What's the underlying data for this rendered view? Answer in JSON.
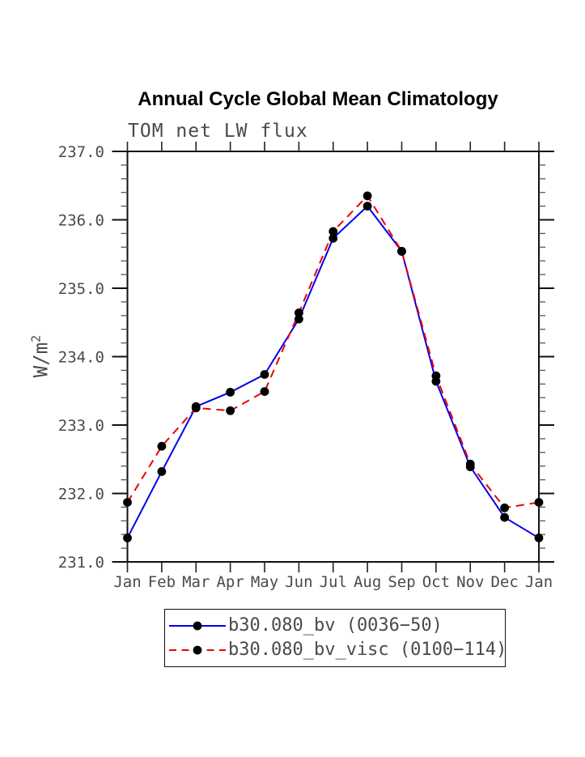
{
  "chart_data": {
    "type": "line",
    "title": "Annual Cycle Global Mean Climatology",
    "subtitle": "TOM net LW flux",
    "ylabel": "W/m2",
    "ylabel_display": {
      "base": "W/m",
      "sup": "2"
    },
    "xlabel": "",
    "categories": [
      "Jan",
      "Feb",
      "Mar",
      "Apr",
      "May",
      "Jun",
      "Jul",
      "Aug",
      "Sep",
      "Oct",
      "Nov",
      "Dec",
      "Jan"
    ],
    "ylim": [
      231.0,
      237.0
    ],
    "y_ticks": [
      {
        "value": 231.0,
        "label": "231.0"
      },
      {
        "value": 232.0,
        "label": "232.0"
      },
      {
        "value": 233.0,
        "label": "233.0"
      },
      {
        "value": 234.0,
        "label": "234.0"
      },
      {
        "value": 235.0,
        "label": "235.0"
      },
      {
        "value": 236.0,
        "label": "236.0"
      },
      {
        "value": 237.0,
        "label": "237.0"
      }
    ],
    "y_minor_interval": 0.2,
    "grid": false,
    "legend_position": "bottom-center",
    "marker": "filled-circle",
    "marker_color": "#000000",
    "series": [
      {
        "name": "b30.080_bv (0036−50)",
        "color": "#0000ee",
        "style": "solid",
        "values": [
          231.35,
          232.32,
          233.27,
          233.48,
          233.74,
          234.55,
          235.73,
          236.2,
          235.54,
          233.64,
          232.39,
          231.65,
          231.35
        ]
      },
      {
        "name": "b30.080_bv_visc (0100−114)",
        "color": "#ee0000",
        "style": "dashed",
        "values": [
          231.87,
          232.69,
          233.25,
          233.21,
          233.49,
          234.64,
          235.83,
          236.35,
          235.54,
          233.72,
          232.43,
          231.79,
          231.87
        ]
      }
    ]
  }
}
